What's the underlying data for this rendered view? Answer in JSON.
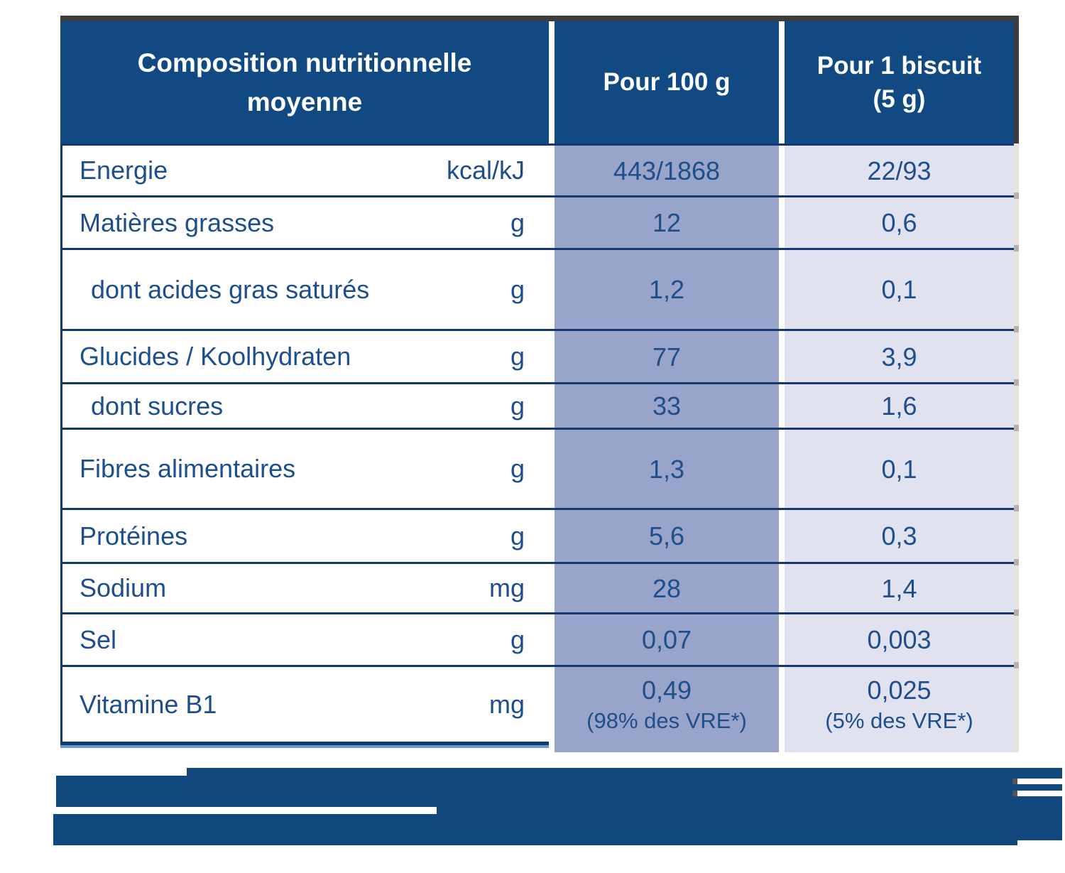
{
  "table": {
    "header": {
      "composition_label": "Composition nutritionnelle moyenne",
      "per_100g_label": "Pour 100 g",
      "per_biscuit_label": "Pour 1 biscuit\n(5 g)"
    },
    "rows": [
      {
        "label": "Energie",
        "unit": "kcal/kJ",
        "per_100g": "443/1868",
        "per_biscuit": "22/93"
      },
      {
        "label": "Matières grasses",
        "unit": "g",
        "per_100g": "12",
        "per_biscuit": "0,6"
      },
      {
        "label": "dont acides gras saturés",
        "unit": "g",
        "per_100g": "1,2",
        "per_biscuit": "0,1"
      },
      {
        "label": "Glucides / Koolhydraten",
        "unit": "g",
        "per_100g": "77",
        "per_biscuit": "3,9"
      },
      {
        "label": "dont sucres",
        "unit": "g",
        "per_100g": "33",
        "per_biscuit": "1,6"
      },
      {
        "label": "Fibres alimentaires",
        "unit": "g",
        "per_100g": "1,3",
        "per_biscuit": "0,1"
      },
      {
        "label": "Protéines",
        "unit": "g",
        "per_100g": "5,6",
        "per_biscuit": "0,3"
      },
      {
        "label": "Sodium",
        "unit": "mg",
        "per_100g": "28",
        "per_biscuit": "1,4"
      },
      {
        "label": "Sel",
        "unit": "g",
        "per_100g": "0,07",
        "per_biscuit": "0,003"
      },
      {
        "label": "Vitamine B1",
        "unit": "mg",
        "per_100g": "0,49",
        "per_100g_note": "(98% des VRE*)",
        "per_biscuit": "0,025",
        "per_biscuit_note": "(5% des VRE*)"
      }
    ]
  },
  "footnote": {
    "redacted": true
  },
  "colors": {
    "header_bg": "#114a82",
    "text_blue": "#1e4f8c",
    "col_100g_bg": "#98a4c9",
    "col_biscuit_bg": "#e0e3ef",
    "divider": "#123a70",
    "bottom_strip": "#6699ce",
    "footnote_bar": "#10477d"
  }
}
